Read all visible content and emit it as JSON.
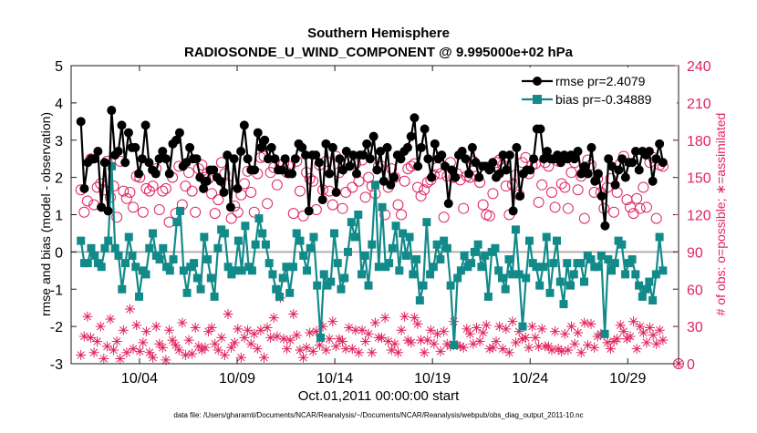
{
  "chart_data": {
    "type": "line",
    "title_line1": "Southern Hemisphere",
    "title_line2": "RADIOSONDE_U_WIND_COMPONENT @ 9.995000e+02 hPa",
    "xlabel": "Oct.01,2011 00:00:00 start",
    "ylabel_left": "rmse and bias (model - observation)",
    "ylabel_right": "# of obs: o=possible; ∗=assimilated",
    "footer": "data file: /Users/gharamti/Documents/NCAR/Reanalysis/~/Documents/NCAR/Reanalysis/webpub/obs_diag_output_2011-10.nc",
    "xlim": [
      0.5,
      31.6
    ],
    "ylim_left": [
      -3,
      5
    ],
    "ylim_right": [
      0,
      240
    ],
    "yticks_left": [
      -3,
      -2,
      -1,
      0,
      1,
      2,
      3,
      4,
      5
    ],
    "yticks_right": [
      0,
      30,
      60,
      90,
      120,
      150,
      180,
      210,
      240
    ],
    "xticks": [
      {
        "day": 4,
        "label": "10/04"
      },
      {
        "day": 9,
        "label": "10/09"
      },
      {
        "day": 14,
        "label": "10/14"
      },
      {
        "day": 19,
        "label": "10/19"
      },
      {
        "day": 24,
        "label": "10/24"
      },
      {
        "day": 29,
        "label": "10/29"
      }
    ],
    "colors": {
      "rmse": "#000000",
      "bias": "#138a8a",
      "obs": "#e0245e",
      "zero_line": "#b0b0b0"
    },
    "legend_position": "top-right",
    "series": [
      {
        "name": "rmse pr=2.4079",
        "axis": "left",
        "marker": "circle",
        "values": [
          3.5,
          1.7,
          2.4,
          2.5,
          2.5,
          2.7,
          1.2,
          2.4,
          1.1,
          3.8,
          2.6,
          2.7,
          3.4,
          2.4,
          3.2,
          2.8,
          2.8,
          2.1,
          2.5,
          3.4,
          2.4,
          2.2,
          2.1,
          2.5,
          2.7,
          2.5,
          2.1,
          2.9,
          3.0,
          3.2,
          2.3,
          2.4,
          2.8,
          2.5,
          2.5,
          2.0,
          1.7,
          1.9,
          2.2,
          2.2,
          2.0,
          1.9,
          1.6,
          2.6,
          1.2,
          2.5,
          1.7,
          2.7,
          3.4,
          2.5,
          2.2,
          2.2,
          3.2,
          2.8,
          3.0,
          2.5,
          2.8,
          2.5,
          2.2,
          2.2,
          2.5,
          2.1,
          2.1,
          2.5,
          2.9,
          2.8,
          2.6,
          1.1,
          2.6,
          2.6,
          2.4,
          1.4,
          2.9,
          2.1,
          2.8,
          1.6,
          2.5,
          2.2,
          2.7,
          2.3,
          2.6,
          2.1,
          2.6,
          2.6,
          2.9,
          2.5,
          3.1,
          2.2,
          2.7,
          1.9,
          2.8,
          1.8,
          2.0,
          2.6,
          2.5,
          2.7,
          2.8,
          3.1,
          3.6,
          2.3,
          2.8,
          3.3,
          2.5,
          2.0,
          2.9,
          2.5,
          2.6,
          2.3,
          1.3,
          2.2,
          2.0,
          2.6,
          2.7,
          2.5,
          2.1,
          2.8,
          2.4,
          2.0,
          2.3,
          2.3,
          2.2,
          2.4,
          2.0,
          2.1,
          2.6,
          2.2,
          2.6,
          1.1,
          2.8,
          1.5,
          2.1,
          2.2,
          2.2,
          2.5,
          3.3,
          3.3,
          2.5,
          2.7,
          2.5,
          2.5,
          2.6,
          2.4,
          2.6,
          2.5,
          2.6,
          2.5,
          2.7,
          2.1,
          2.3,
          2.1,
          2.8,
          1.9,
          2.1,
          1.5,
          0.7,
          2.5,
          2.3,
          1.8,
          2.2,
          2.5,
          2.0,
          2.4,
          2.4,
          2.7,
          2.2,
          2.7,
          2.6,
          2.7,
          1.9,
          2.5,
          2.9,
          2.4
        ]
      },
      {
        "name": "bias pr=-0.34889",
        "axis": "left",
        "marker": "square",
        "values": [
          0.3,
          -0.3,
          -0.3,
          0.1,
          -0.1,
          -0.3,
          -0.4,
          0.1,
          0.3,
          2.3,
          0.1,
          -0.1,
          -1.0,
          -0.3,
          0.4,
          -0.1,
          -0.4,
          -1.2,
          -0.5,
          -0.6,
          0.1,
          0.5,
          -0.1,
          -0.2,
          0.1,
          -0.4,
          -0.5,
          -0.2,
          0.8,
          1.1,
          -0.5,
          -1.1,
          -0.4,
          -0.3,
          -0.7,
          -1.0,
          0.4,
          -0.2,
          -0.7,
          -1.2,
          0.1,
          0.6,
          0.5,
          -0.4,
          -0.6,
          -0.5,
          0.3,
          -0.5,
          0.7,
          -0.4,
          -0.5,
          0.2,
          0.9,
          0.5,
          0.2,
          -0.3,
          -0.6,
          -1.0,
          -1.2,
          -0.7,
          -0.4,
          -1.1,
          -0.4,
          0.5,
          0.3,
          -0.1,
          -0.5,
          0.1,
          0.4,
          -0.9,
          -2.3,
          -0.6,
          -0.9,
          -0.8,
          0.5,
          -0.3,
          -1.0,
          -0.7,
          0.0,
          0.8,
          0.4,
          1.0,
          -0.6,
          -0.1,
          -0.9,
          0.2,
          1.8,
          -0.4,
          1.2,
          -0.4,
          -0.3,
          0.1,
          0.7,
          -0.5,
          0.5,
          -0.1,
          0.4,
          -0.6,
          -0.2,
          -1.3,
          -0.9,
          0.8,
          -0.6,
          -0.4,
          0.2,
          -0.2,
          0.3,
          0.1,
          -0.9,
          -2.5,
          -0.7,
          -0.5,
          -0.1,
          -0.4,
          -0.3,
          0.0,
          0.2,
          -0.4,
          -0.1,
          -1.2,
          0.0,
          0.1,
          -0.5,
          -0.7,
          -1.0,
          -0.2,
          -0.6,
          0.6,
          -0.6,
          -2.0,
          -0.7,
          0.3,
          -0.3,
          -0.4,
          -0.9,
          -0.4,
          0.4,
          -1.1,
          -0.3,
          0.3,
          -0.8,
          -1.4,
          -0.3,
          -0.9,
          -0.6,
          -0.3,
          -0.3,
          -0.8,
          -0.1,
          -0.2,
          -0.4,
          -0.4,
          -0.1,
          -2.2,
          -0.2,
          -0.5,
          -0.3,
          0.3,
          0.2,
          -0.6,
          -0.3,
          -0.2,
          -0.6,
          -0.9,
          -1.2,
          -1.0,
          -0.8,
          -1.3,
          -0.6,
          0.4,
          -0.5
        ]
      },
      {
        "name": "possible",
        "axis": "right",
        "marker": "open-circle",
        "values": [
          140,
          122,
          131,
          165,
          128,
          142,
          145,
          140,
          163,
          134,
          143,
          118,
          163,
          139,
          133,
          138,
          126,
          151,
          150,
          122,
          141,
          139,
          143,
          157,
          124,
          139,
          141,
          114,
          150,
          121,
          159,
          128,
          143,
          154,
          139,
          122,
          157,
          160,
          150,
          149,
          137,
          121,
          132,
          162,
          153,
          144,
          117,
          127,
          122,
          136,
          145,
          155,
          138,
          122,
          153,
          166,
          167,
          129,
          154,
          158,
          144,
          160,
          161,
          154,
          159,
          121,
          163,
          139,
          119,
          154,
          149,
          147,
          124,
          160,
          140,
          163,
          139,
          128,
          167,
          154,
          125,
          138,
          163,
          142,
          161,
          147,
          164,
          134,
          150,
          143,
          137,
          159,
          159,
          120,
          142,
          157,
          150,
          128,
          120,
          147,
          157,
          159,
          161,
          142,
          135,
          140,
          146,
          148,
          152,
          158,
          153,
          118,
          151,
          162,
          150,
          153,
          148,
          125,
          151,
          150,
          163,
          151,
          146,
          128,
          120,
          119,
          137,
          162,
          164,
          160,
          143,
          120,
          144,
          152,
          136,
          162,
          166,
          153,
          160,
          161,
          130,
          144,
          162,
          159,
          138,
          126,
          163,
          145,
          142,
          125,
          154,
          162,
          140,
          151,
          117,
          164,
          160,
          138,
          149,
          138,
          125,
          142,
          149,
          122,
          138,
          161,
          167,
          132,
          126,
          121,
          133,
          125,
          142,
          126,
          162,
          166,
          117,
          160,
          159
        ]
      },
      {
        "name": "assimilated",
        "axis": "right",
        "marker": "asterisk",
        "values": [
          7,
          22,
          38,
          21,
          9,
          18,
          30,
          4,
          14,
          36,
          11,
          18,
          4,
          27,
          9,
          44,
          12,
          31,
          10,
          17,
          26,
          9,
          5,
          30,
          16,
          13,
          3,
          27,
          19,
          15,
          11,
          33,
          7,
          19,
          8,
          29,
          14,
          11,
          13,
          26,
          29,
          16,
          11,
          21,
          7,
          40,
          13,
          17,
          28,
          5,
          21,
          27,
          16,
          24,
          12,
          27,
          5,
          29,
          21,
          37,
          22,
          53,
          20,
          12,
          19,
          40,
          23,
          11,
          5,
          13,
          25,
          10,
          26,
          15,
          30,
          11,
          20,
          34,
          14,
          20,
          18,
          12,
          29,
          12,
          27,
          9,
          27,
          18,
          24,
          9,
          33,
          21,
          21,
          37,
          18,
          11,
          16,
          9,
          27,
          38,
          19,
          17,
          37,
          32,
          19,
          9,
          19,
          27,
          16,
          24,
          10,
          26,
          16,
          14,
          34,
          15,
          14,
          13,
          28,
          24,
          16,
          29,
          18,
          25,
          31,
          12,
          13,
          18,
          30,
          12,
          28,
          9,
          34,
          17,
          26,
          20,
          21,
          13,
          30,
          21,
          14,
          28,
          14,
          14,
          11,
          26,
          12,
          10,
          24,
          11,
          30,
          16,
          25,
          9,
          33,
          15,
          32,
          13,
          22,
          24,
          23,
          17,
          12,
          18,
          20,
          31,
          26,
          20,
          22,
          34,
          12,
          30,
          25,
          17,
          29,
          23,
          16,
          27,
          19
        ]
      }
    ]
  }
}
